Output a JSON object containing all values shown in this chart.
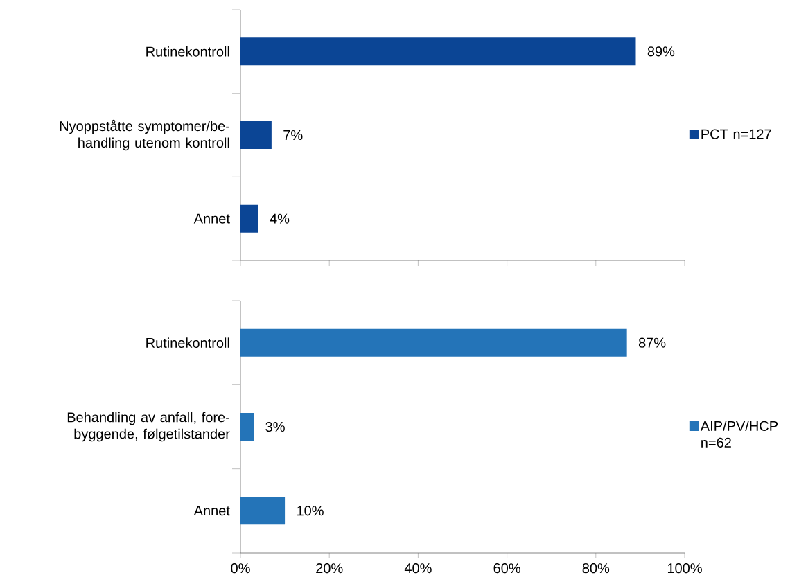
{
  "chart_data": [
    {
      "type": "bar",
      "orientation": "horizontal",
      "categories": [
        "Rutinekontroll",
        "Nyoppståtte symptomer/be-handling utenom kontroll",
        "Annet"
      ],
      "series": [
        {
          "name": "PCT n=127",
          "color": "#0b4595",
          "values": [
            89,
            7,
            4
          ],
          "value_labels": [
            "89%",
            "7%",
            "4%"
          ]
        }
      ],
      "xlim": [
        0,
        100
      ],
      "xticks": [
        {
          "value": 0,
          "label": null
        },
        {
          "value": 20,
          "label": null
        },
        {
          "value": 40,
          "label": null
        },
        {
          "value": 60,
          "label": null
        },
        {
          "value": 80,
          "label": null
        },
        {
          "value": 100,
          "label": null
        }
      ],
      "tick_labels": "y",
      "legend": "right"
    },
    {
      "type": "bar",
      "orientation": "horizontal",
      "categories": [
        "Rutinekontroll",
        "Behandling av anfall, fore-byggende, følgetilstander",
        "Annet"
      ],
      "series": [
        {
          "name": "AIP/PV/HCP n=62",
          "color": "#2474b8",
          "values": [
            87,
            3,
            10
          ],
          "value_labels": [
            "87%",
            "3%",
            "10%"
          ]
        }
      ],
      "xlim": [
        0,
        100
      ],
      "xticks": [
        {
          "value": 0,
          "label": "0%"
        },
        {
          "value": 20,
          "label": "20%"
        },
        {
          "value": 40,
          "label": "40%"
        },
        {
          "value": 60,
          "label": "60%"
        },
        {
          "value": 80,
          "label": "80%"
        },
        {
          "value": 100,
          "label": "100%"
        }
      ],
      "legend": "right"
    }
  ]
}
